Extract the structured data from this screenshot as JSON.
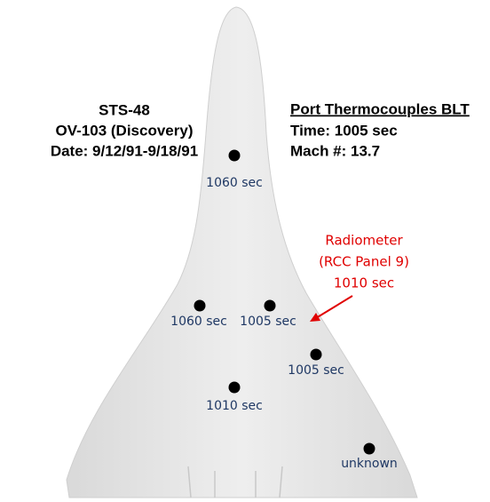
{
  "mission_info": {
    "lines": [
      "STS-48",
      "OV-103 (Discovery)",
      "Date: 9/12/91-9/18/91"
    ]
  },
  "flight_info": {
    "title": "Port Thermocouples BLT",
    "lines": [
      "Time: 1005 sec",
      "Mach #: 13.7"
    ]
  },
  "sensors": [
    {
      "label": "1060 sec"
    },
    {
      "label": "1060 sec"
    },
    {
      "label": "1005 sec"
    },
    {
      "label": "1005 sec"
    },
    {
      "label": "1010 sec"
    },
    {
      "label": "unknown"
    }
  ],
  "radiometer": {
    "lines": [
      "Radiometer",
      "(RCC Panel 9)",
      "1010 sec"
    ]
  }
}
